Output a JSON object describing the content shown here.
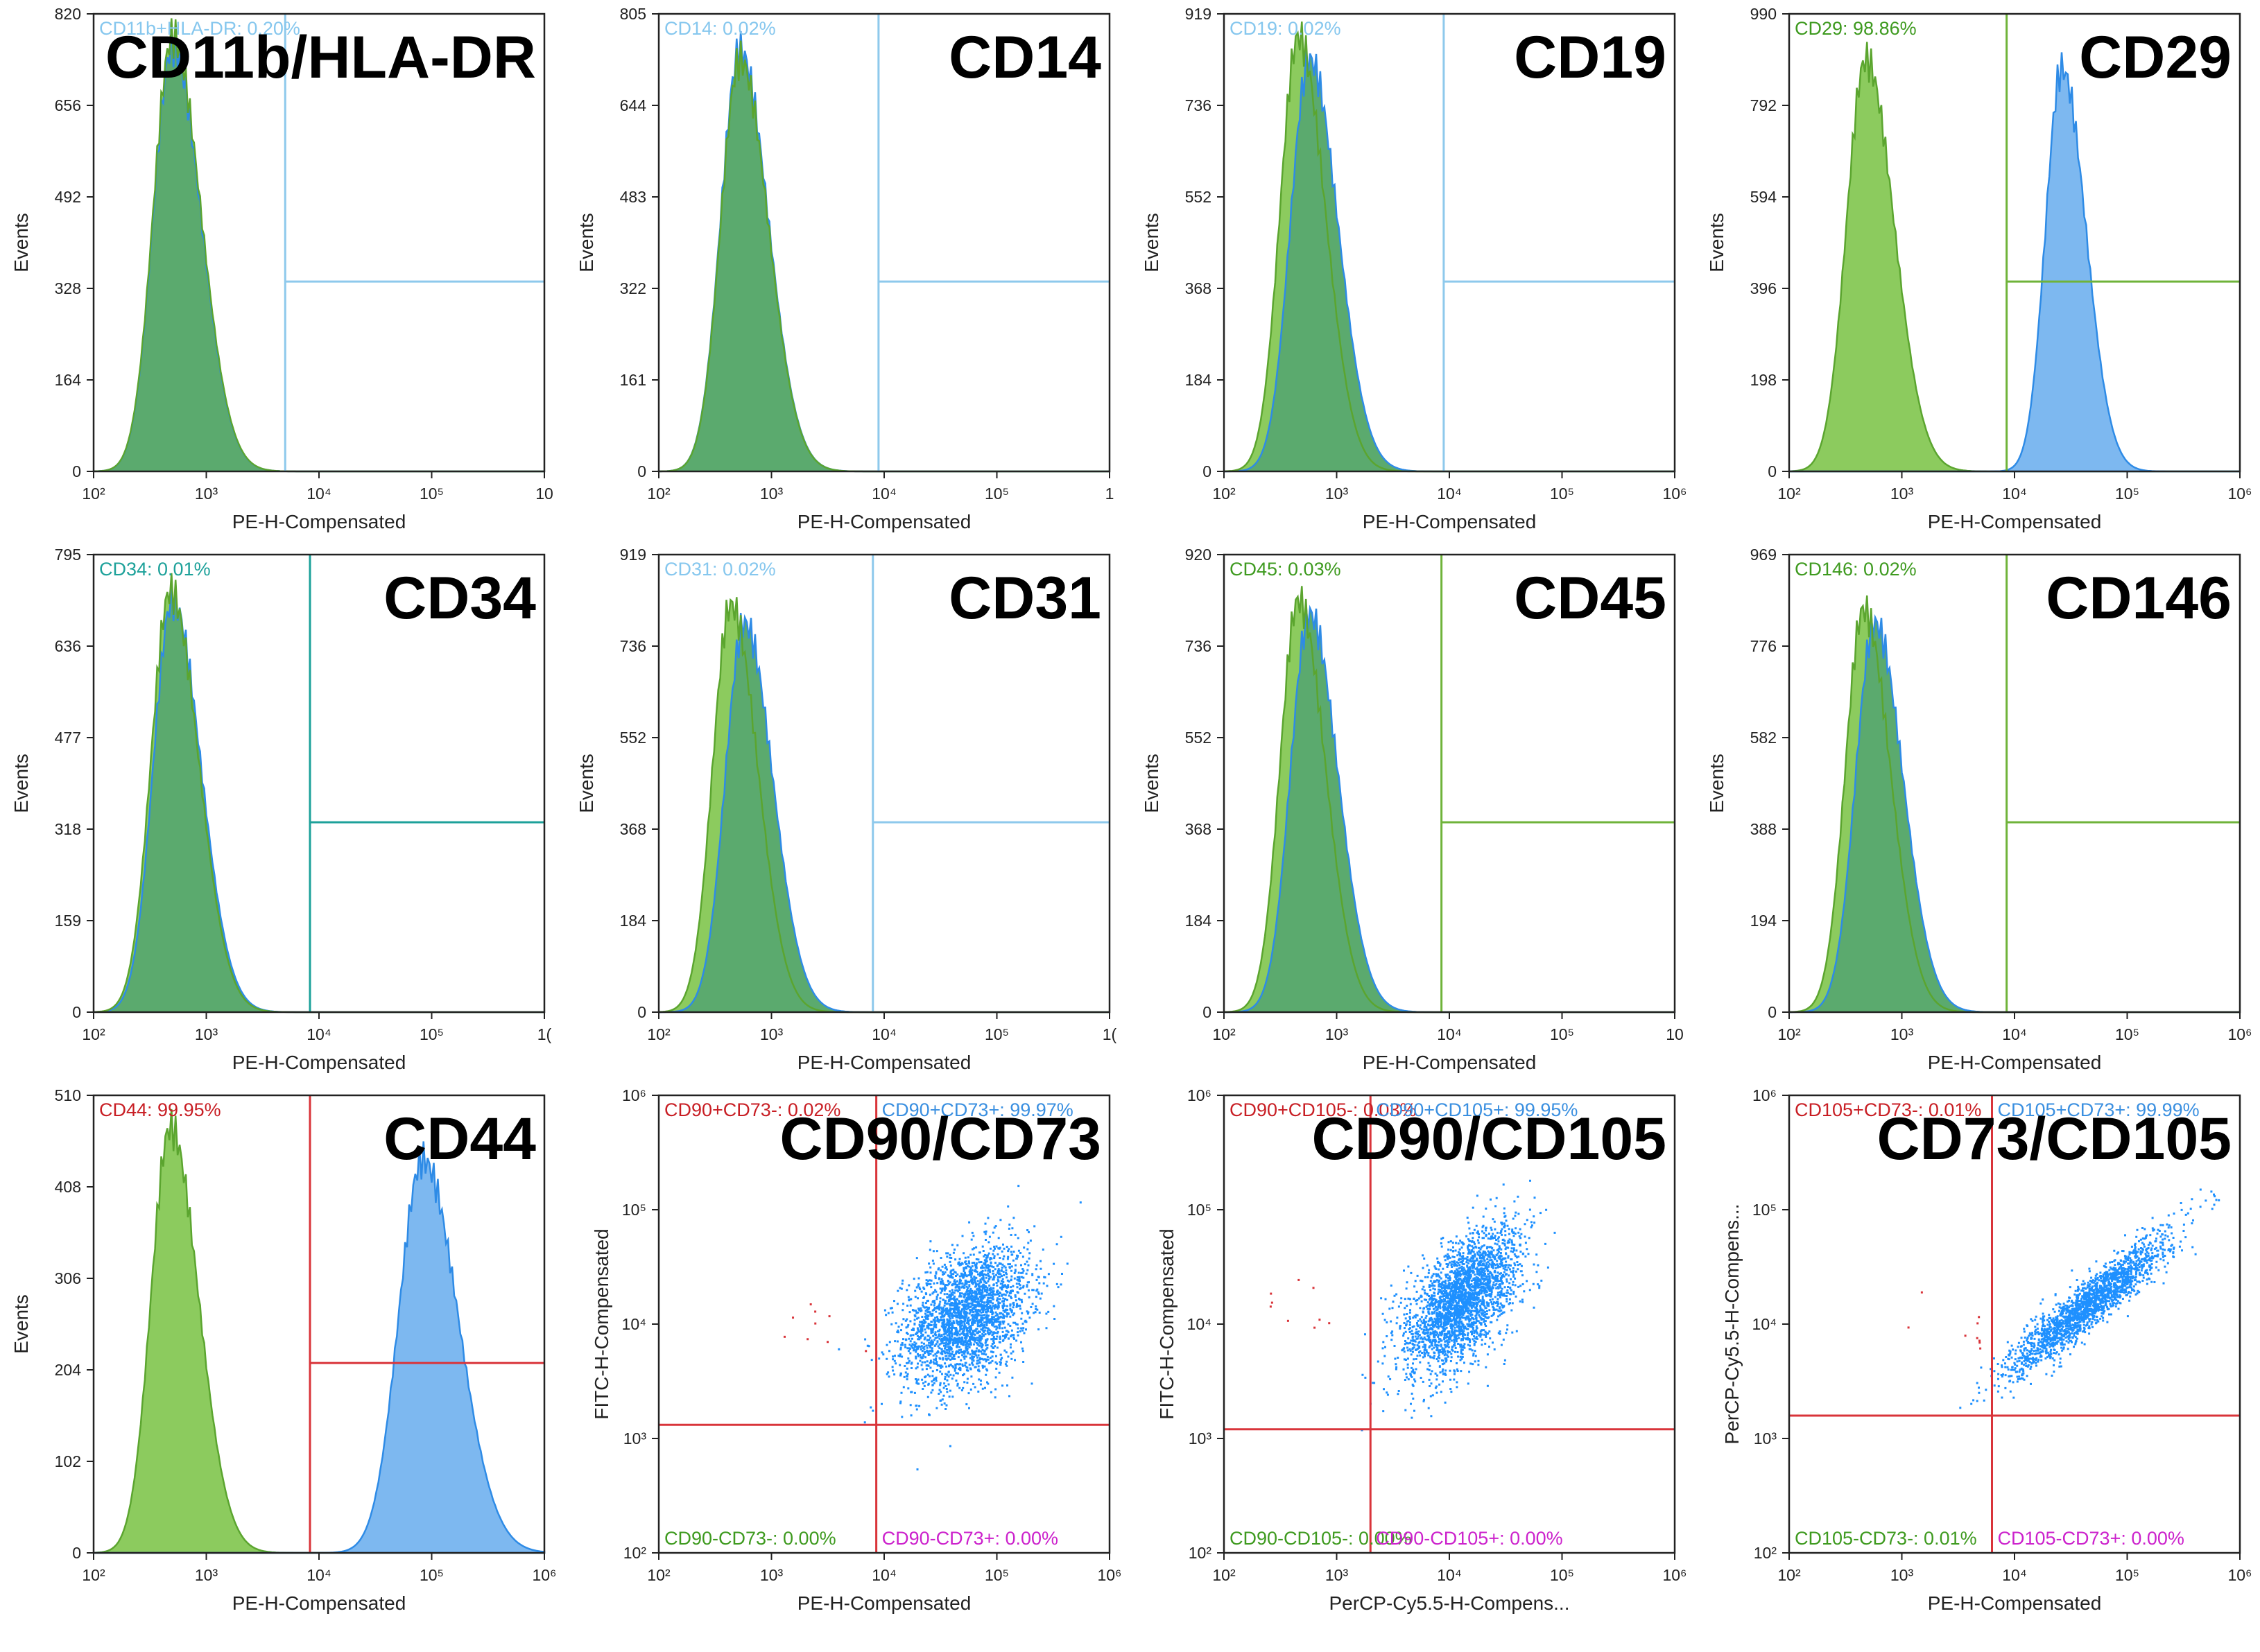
{
  "colors": {
    "control_fill": "#8CCB5E",
    "control_line": "#5BA52F",
    "sample_fill": "#7DB8F0",
    "sample_line": "#2E8BE6",
    "overlap_fill": "#5BAA6E",
    "gate_blue": "#8EC9EC",
    "gate_teal": "#1DA19A",
    "gate_green": "#6FB33A",
    "gate_red": "#D9343A",
    "dot_blue": "#1E90FF",
    "text_green": "#3E9A1F",
    "text_magenta": "#CC22CC",
    "text_red": "#C81E24",
    "text_blue": "#3A8FE0",
    "text_lightblue": "#86C7EE"
  },
  "chart_data": [
    {
      "type": "histogram",
      "marker": "CD11b/HLA-DR",
      "ylabel": "Events",
      "xlabel": "PE-H-Compensated",
      "yticks": [
        "0",
        "164",
        "328",
        "492",
        "656",
        "820"
      ],
      "ymax": 820,
      "xticks": [
        "10²",
        "10³",
        "10⁴",
        "10⁵",
        "10"
      ],
      "gate_label": "CD11b+HLA-DR: 0.20%",
      "gate_log": 3.7,
      "gate_color": "#8EC9EC",
      "control": {
        "center": 2.7,
        "width": 0.2,
        "peak": 0.95
      },
      "sample": {
        "center": 2.7,
        "width": 0.2,
        "peak": 0.93,
        "mode": "overlap"
      }
    },
    {
      "type": "histogram",
      "marker": "CD14",
      "ylabel": "Events",
      "xlabel": "PE-H-Compensated",
      "yticks": [
        "0",
        "161",
        "322",
        "483",
        "644",
        "805"
      ],
      "ymax": 805,
      "xticks": [
        "10²",
        "10³",
        "10⁴",
        "10⁵",
        "1"
      ],
      "gate_label": "CD14: 0.02%",
      "gate_log": 3.95,
      "gate_color": "#8EC9EC",
      "control": {
        "center": 2.72,
        "width": 0.2,
        "peak": 0.9
      },
      "sample": {
        "center": 2.72,
        "width": 0.2,
        "peak": 0.92,
        "mode": "overlap"
      }
    },
    {
      "type": "histogram",
      "marker": "CD19",
      "ylabel": "Events",
      "xlabel": "PE-H-Compensated",
      "yticks": [
        "0",
        "184",
        "368",
        "552",
        "736",
        "919"
      ],
      "ymax": 919,
      "xticks": [
        "10²",
        "10³",
        "10⁴",
        "10⁵",
        "10⁶"
      ],
      "gate_label": "CD19: 0.02%",
      "gate_log": 3.95,
      "gate_color": "#8EC9EC",
      "control": {
        "center": 2.66,
        "width": 0.19,
        "peak": 0.95
      },
      "sample": {
        "center": 2.76,
        "width": 0.2,
        "peak": 0.9,
        "mode": "overlap"
      }
    },
    {
      "type": "histogram",
      "marker": "CD29",
      "ylabel": "Events",
      "xlabel": "PE-H-Compensated",
      "yticks": [
        "0",
        "198",
        "396",
        "594",
        "792",
        "990"
      ],
      "ymax": 990,
      "xticks": [
        "10²",
        "10³",
        "10⁴",
        "10⁵",
        "10⁶"
      ],
      "gate_label": "CD29: 98.86%",
      "gate_log": 3.93,
      "gate_color": "#6FB33A",
      "control": {
        "center": 2.68,
        "width": 0.2,
        "peak": 0.9
      },
      "sample": {
        "center": 4.42,
        "width": 0.17,
        "peak": 0.88,
        "mode": "separate"
      }
    },
    {
      "type": "histogram",
      "marker": "CD34",
      "ylabel": "Events",
      "xlabel": "PE-H-Compensated",
      "yticks": [
        "0",
        "159",
        "318",
        "477",
        "636",
        "795"
      ],
      "ymax": 795,
      "xticks": [
        "10²",
        "10³",
        "10⁴",
        "10⁵",
        "1("
      ],
      "gate_label": "CD34: 0.01%",
      "gate_log": 3.92,
      "gate_color": "#1DA19A",
      "control": {
        "center": 2.68,
        "width": 0.2,
        "peak": 0.92
      },
      "sample": {
        "center": 2.7,
        "width": 0.2,
        "peak": 0.9,
        "mode": "overlap"
      }
    },
    {
      "type": "histogram",
      "marker": "CD31",
      "ylabel": "Events",
      "xlabel": "PE-H-Compensated",
      "yticks": [
        "0",
        "184",
        "368",
        "552",
        "736",
        "919"
      ],
      "ymax": 919,
      "xticks": [
        "10²",
        "10³",
        "10⁴",
        "10⁵",
        "1("
      ],
      "gate_label": "CD31: 0.02%",
      "gate_log": 3.9,
      "gate_color": "#8EC9EC",
      "control": {
        "center": 2.64,
        "width": 0.19,
        "peak": 0.89
      },
      "sample": {
        "center": 2.76,
        "width": 0.2,
        "peak": 0.85,
        "mode": "overlap"
      }
    },
    {
      "type": "histogram",
      "marker": "CD45",
      "ylabel": "Events",
      "xlabel": "PE-H-Compensated",
      "yticks": [
        "0",
        "184",
        "368",
        "552",
        "736",
        "920"
      ],
      "ymax": 920,
      "xticks": [
        "10²",
        "10³",
        "10⁴",
        "10⁵",
        "10"
      ],
      "gate_label": "CD45: 0.03%",
      "gate_log": 3.93,
      "gate_color": "#6FB33A",
      "control": {
        "center": 2.66,
        "width": 0.19,
        "peak": 0.9
      },
      "sample": {
        "center": 2.76,
        "width": 0.2,
        "peak": 0.87,
        "mode": "overlap"
      }
    },
    {
      "type": "histogram",
      "marker": "CD146",
      "ylabel": "Events",
      "xlabel": "PE-H-Compensated",
      "yticks": [
        "0",
        "194",
        "388",
        "582",
        "776",
        "969"
      ],
      "ymax": 969,
      "xticks": [
        "10²",
        "10³",
        "10⁴",
        "10⁵",
        "10⁶"
      ],
      "gate_label": "CD146: 0.02%",
      "gate_log": 3.93,
      "gate_color": "#6FB33A",
      "control": {
        "center": 2.66,
        "width": 0.19,
        "peak": 0.88
      },
      "sample": {
        "center": 2.76,
        "width": 0.2,
        "peak": 0.85,
        "mode": "overlap"
      }
    },
    {
      "type": "histogram",
      "marker": "CD44",
      "ylabel": "Events",
      "xlabel": "PE-H-Compensated",
      "yticks": [
        "0",
        "102",
        "204",
        "306",
        "408",
        "510"
      ],
      "ymax": 510,
      "xticks": [
        "10²",
        "10³",
        "10⁴",
        "10⁵",
        "10⁶"
      ],
      "gate_label": "CD44: 99.95%",
      "gate_log": 3.92,
      "gate_color": "#D9343A",
      "control": {
        "center": 2.68,
        "width": 0.2,
        "peak": 0.93
      },
      "sample": {
        "center": 4.92,
        "width": 0.25,
        "peak": 0.86,
        "mode": "separate"
      }
    },
    {
      "type": "scatter",
      "marker": "CD90/CD73",
      "xlabel": "PE-H-Compensated",
      "ylabel": "FITC-H-Compensated",
      "xticks": [
        "10²",
        "10³",
        "10⁴",
        "10⁵",
        "10⁶"
      ],
      "yticks": [
        "10²",
        "10³",
        "10⁴",
        "10⁵",
        "10⁶"
      ],
      "gate_x": 3.93,
      "gate_y": 3.12,
      "quadrants": {
        "ul": "CD90+CD73-: 0.02%",
        "ur": "CD90+CD73+: 99.97%",
        "ll": "CD90-CD73-: 0.00%",
        "lr": "CD90-CD73+: 0.00%"
      },
      "cloud": {
        "cx": 4.72,
        "cy": 4.08,
        "sx": 0.28,
        "sy": 0.3,
        "rho": 0.35,
        "n": 2600
      }
    },
    {
      "type": "scatter",
      "marker": "CD90/CD105",
      "xlabel": "PerCP-Cy5.5-H-Compens...",
      "ylabel": "FITC-H-Compensated",
      "xticks": [
        "10²",
        "10³",
        "10⁴",
        "10⁵",
        "10⁶"
      ],
      "yticks": [
        "10²",
        "10³",
        "10⁴",
        "10⁵",
        "10⁶"
      ],
      "gate_x": 3.3,
      "gate_y": 3.08,
      "quadrants": {
        "ul": "CD90+CD105-: 0.03%",
        "ur": "CD90+CD105+: 99.95%",
        "ll": "CD90-CD105-: 0.00%",
        "lr": "CD90-CD105+: 0.00%"
      },
      "cloud": {
        "cx": 4.1,
        "cy": 4.22,
        "sx": 0.25,
        "sy": 0.3,
        "rho": 0.55,
        "n": 2600
      }
    },
    {
      "type": "scatter",
      "marker": "CD73/CD105",
      "xlabel": "PE-H-Compensated",
      "ylabel": "PerCP-Cy5.5-H-Compens...",
      "xticks": [
        "10²",
        "10³",
        "10⁴",
        "10⁵",
        "10⁶"
      ],
      "yticks": [
        "10²",
        "10³",
        "10⁴",
        "10⁵",
        "10⁶"
      ],
      "gate_x": 3.8,
      "gate_y": 3.2,
      "quadrants": {
        "ul": "CD105+CD73-: 0.01%",
        "ur": "CD105+CD73+: 99.99%",
        "ll": "CD105-CD73-: 0.01%",
        "lr": "CD105-CD73+: 0.00%"
      },
      "cloud": {
        "cx": 4.65,
        "cy": 4.18,
        "sx": 0.35,
        "sy": 0.3,
        "rho": 0.93,
        "n": 2000
      }
    }
  ]
}
